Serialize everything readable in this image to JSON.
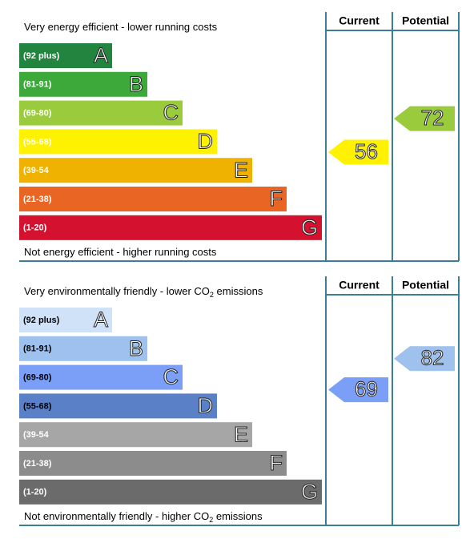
{
  "panels": [
    {
      "top_text": [
        "Very energy efficient - lower running costs"
      ],
      "bottom_text": [
        "Not energy efficient - higher running costs"
      ],
      "headers": [
        "Current",
        "Potential"
      ],
      "bands": [
        {
          "range": "(92 plus)",
          "letter": "A",
          "color": "#23843f",
          "label_color": "#ffffff"
        },
        {
          "range": "(81-91)",
          "letter": "B",
          "color": "#3ca93a",
          "label_color": "#ffffff"
        },
        {
          "range": "(69-80)",
          "letter": "C",
          "color": "#9acb3c",
          "label_color": "#ffffff"
        },
        {
          "range": "(55-68)",
          "letter": "D",
          "color": "#fff200",
          "label_color": "#ffffff"
        },
        {
          "range": "(39-54",
          "letter": "E",
          "color": "#f0b200",
          "label_color": "#ffffff"
        },
        {
          "range": "(21-38)",
          "letter": "F",
          "color": "#e86524",
          "label_color": "#ffffff"
        },
        {
          "range": "(1-20)",
          "letter": "G",
          "color": "#d4112e",
          "label_color": "#ffffff"
        }
      ],
      "current": 56,
      "potential": 72
    },
    {
      "top_text": [
        "Very environmentally friendly - lower CO",
        "2",
        " emissions"
      ],
      "bottom_text": [
        "Not environmentally friendly - higher CO",
        "2",
        " emissions"
      ],
      "headers": [
        "Current",
        "Potential"
      ],
      "bands": [
        {
          "range": "(92 plus)",
          "letter": "A",
          "color": "#cfe2f8",
          "label_color": "#000000"
        },
        {
          "range": "(81-91)",
          "letter": "B",
          "color": "#9ec1ee",
          "label_color": "#000000"
        },
        {
          "range": "(69-80)",
          "letter": "C",
          "color": "#7b9ff7",
          "label_color": "#000000"
        },
        {
          "range": "(55-68)",
          "letter": "D",
          "color": "#5a80c8",
          "label_color": "#000000"
        },
        {
          "range": "(39-54",
          "letter": "E",
          "color": "#a6a6a6",
          "label_color": "#ffffff"
        },
        {
          "range": "(21-38)",
          "letter": "F",
          "color": "#8c8c8c",
          "label_color": "#ffffff"
        },
        {
          "range": "(1-20)",
          "letter": "G",
          "color": "#6b6b6b",
          "label_color": "#ffffff"
        }
      ],
      "current": 69,
      "potential": 82
    }
  ]
}
